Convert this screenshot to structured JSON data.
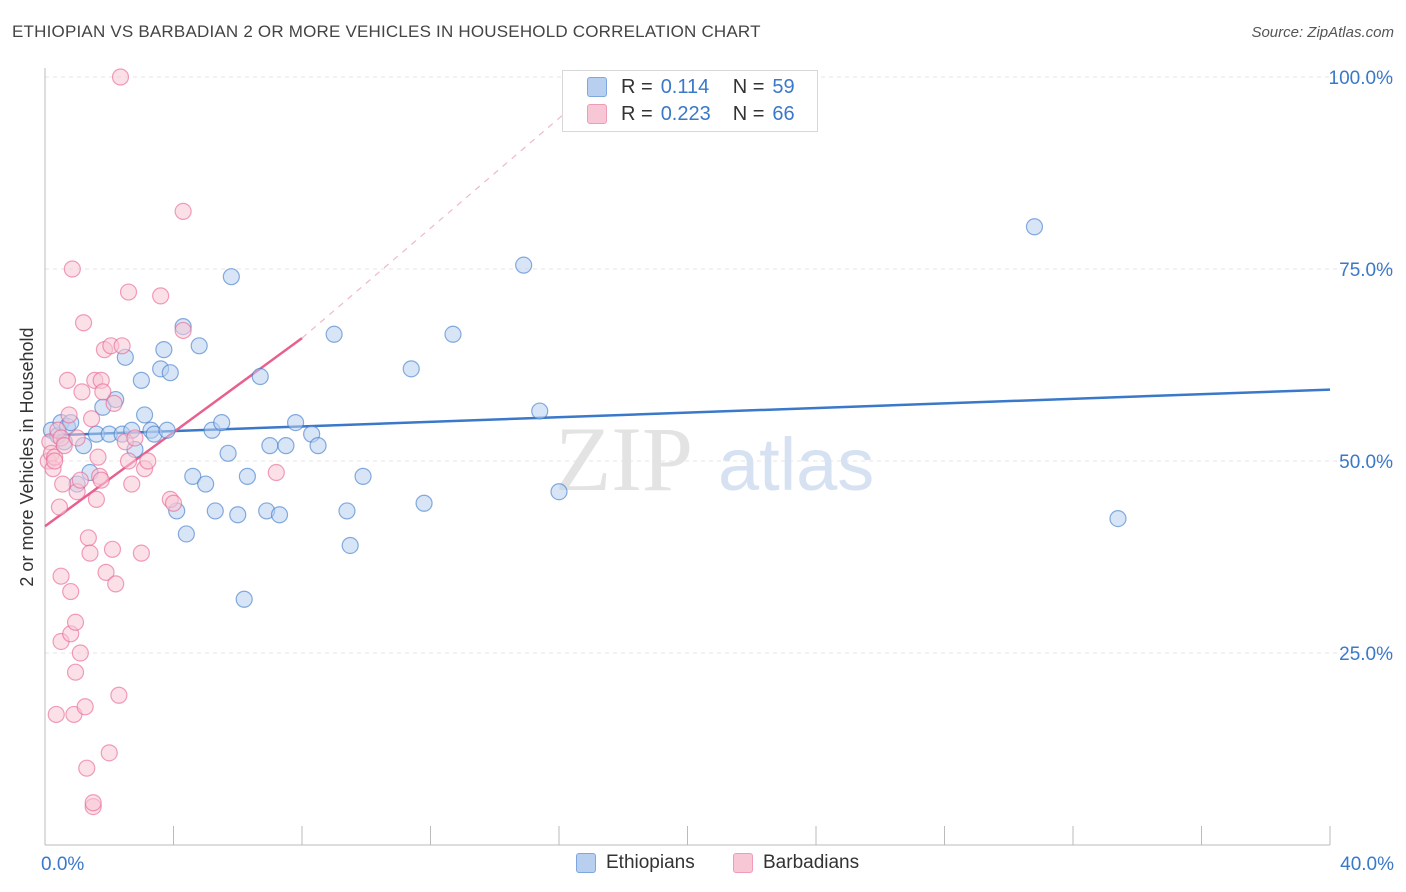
{
  "title": "ETHIOPIAN VS BARBADIAN 2 OR MORE VEHICLES IN HOUSEHOLD CORRELATION CHART",
  "source": "Source: ZipAtlas.com",
  "legend": {
    "rows": [
      {
        "r_label": "R =",
        "r_value": "0.114",
        "n_label": "N =",
        "n_value": "59"
      },
      {
        "r_label": "R =",
        "r_value": "0.223",
        "n_label": "N =",
        "n_value": "66"
      }
    ],
    "bottom": [
      "Ethiopians",
      "Barbadians"
    ]
  },
  "watermark": {
    "zip": "ZIP",
    "atlas": "atlas"
  },
  "colors": {
    "blue": "#3a78c9",
    "blue_fill": "#b8cff0",
    "pink": "#e8608f",
    "pink_fill": "#f8c7d6",
    "grid": "#e6e6e6"
  },
  "chart_data": {
    "type": "scatter",
    "ylabel": "2 or more Vehicles in Household",
    "xlabel": "",
    "xlim": [
      0,
      40
    ],
    "ylim": [
      0,
      100
    ],
    "x_tick_labels": [
      {
        "value": 0,
        "label": "0.0%"
      },
      {
        "value": 40,
        "label": "40.0%"
      }
    ],
    "y_tick_labels": [
      {
        "value": 100,
        "label": "100.0%"
      },
      {
        "value": 75,
        "label": "75.0%"
      },
      {
        "value": 50,
        "label": "50.0%"
      },
      {
        "value": 25,
        "label": "25.0%"
      }
    ],
    "series": [
      {
        "name": "Ethiopians",
        "color": "#3a78c9",
        "fill": "#b8cff0",
        "trend": {
          "x": [
            0,
            40
          ],
          "y": [
            53.3,
            59.3
          ],
          "dashed_extension": false
        },
        "points": [
          [
            0.2,
            54.0
          ],
          [
            0.4,
            53.3
          ],
          [
            0.5,
            55.0
          ],
          [
            0.6,
            52.5
          ],
          [
            0.7,
            54.5
          ],
          [
            0.8,
            55.0
          ],
          [
            1.0,
            47.0
          ],
          [
            1.2,
            52.0
          ],
          [
            1.4,
            48.5
          ],
          [
            1.6,
            53.5
          ],
          [
            1.8,
            57.0
          ],
          [
            2.0,
            53.5
          ],
          [
            2.2,
            58.0
          ],
          [
            2.4,
            53.5
          ],
          [
            2.5,
            63.5
          ],
          [
            2.7,
            54.0
          ],
          [
            2.8,
            51.5
          ],
          [
            3.0,
            60.5
          ],
          [
            3.1,
            56.0
          ],
          [
            3.3,
            54.0
          ],
          [
            3.4,
            53.5
          ],
          [
            3.6,
            62.0
          ],
          [
            3.7,
            64.5
          ],
          [
            3.8,
            54.0
          ],
          [
            3.9,
            61.5
          ],
          [
            4.1,
            43.5
          ],
          [
            4.3,
            67.5
          ],
          [
            4.4,
            40.5
          ],
          [
            4.6,
            48.0
          ],
          [
            4.8,
            65.0
          ],
          [
            5.0,
            47.0
          ],
          [
            5.2,
            54.0
          ],
          [
            5.3,
            43.5
          ],
          [
            5.5,
            55.0
          ],
          [
            5.7,
            51.0
          ],
          [
            5.8,
            74.0
          ],
          [
            6.0,
            43.0
          ],
          [
            6.2,
            32.0
          ],
          [
            6.3,
            48.0
          ],
          [
            6.7,
            61.0
          ],
          [
            6.9,
            43.5
          ],
          [
            7.0,
            52.0
          ],
          [
            7.3,
            43.0
          ],
          [
            7.5,
            52.0
          ],
          [
            7.8,
            55.0
          ],
          [
            8.3,
            53.5
          ],
          [
            8.5,
            52.0
          ],
          [
            9.0,
            66.5
          ],
          [
            9.4,
            43.5
          ],
          [
            9.5,
            39.0
          ],
          [
            9.9,
            48.0
          ],
          [
            11.4,
            62.0
          ],
          [
            11.8,
            44.5
          ],
          [
            12.7,
            66.5
          ],
          [
            14.9,
            75.5
          ],
          [
            15.4,
            56.5
          ],
          [
            16.0,
            46.0
          ],
          [
            30.8,
            80.5
          ],
          [
            33.4,
            42.5
          ]
        ]
      },
      {
        "name": "Barbadians",
        "color": "#e8608f",
        "fill": "#f8c7d6",
        "trend": {
          "x": [
            0,
            8
          ],
          "y": [
            41.5,
            66.0
          ],
          "dashed_extension": true,
          "dash_to": [
            17.5,
            100
          ]
        },
        "points": [
          [
            0.1,
            50.0
          ],
          [
            0.15,
            52.5
          ],
          [
            0.2,
            51.0
          ],
          [
            0.25,
            49.0
          ],
          [
            0.3,
            50.5
          ],
          [
            0.35,
            17.0
          ],
          [
            0.4,
            54.0
          ],
          [
            0.45,
            44.0
          ],
          [
            0.5,
            53.0
          ],
          [
            0.5,
            26.5
          ],
          [
            0.5,
            35.0
          ],
          [
            0.55,
            47.0
          ],
          [
            0.6,
            52.0
          ],
          [
            0.7,
            60.5
          ],
          [
            0.75,
            56.0
          ],
          [
            0.8,
            33.0
          ],
          [
            0.8,
            27.5
          ],
          [
            0.85,
            75.0
          ],
          [
            0.9,
            17.0
          ],
          [
            0.95,
            29.0
          ],
          [
            0.95,
            22.5
          ],
          [
            1.0,
            46.0
          ],
          [
            1.0,
            53.0
          ],
          [
            1.1,
            47.5
          ],
          [
            1.1,
            25.0
          ],
          [
            1.15,
            59.0
          ],
          [
            1.2,
            68.0
          ],
          [
            1.25,
            18.0
          ],
          [
            1.3,
            10.0
          ],
          [
            1.35,
            40.0
          ],
          [
            1.4,
            38.0
          ],
          [
            1.45,
            55.5
          ],
          [
            1.5,
            5.0
          ],
          [
            1.5,
            5.5
          ],
          [
            1.55,
            60.5
          ],
          [
            1.6,
            45.0
          ],
          [
            1.65,
            50.5
          ],
          [
            1.7,
            48.0
          ],
          [
            1.75,
            47.5
          ],
          [
            1.75,
            60.5
          ],
          [
            1.8,
            59.0
          ],
          [
            1.85,
            64.5
          ],
          [
            1.9,
            35.5
          ],
          [
            2.0,
            12.0
          ],
          [
            2.05,
            65.0
          ],
          [
            2.1,
            38.5
          ],
          [
            2.15,
            57.5
          ],
          [
            2.2,
            34.0
          ],
          [
            2.3,
            19.5
          ],
          [
            2.35,
            100.0
          ],
          [
            2.4,
            65.0
          ],
          [
            2.5,
            52.5
          ],
          [
            2.6,
            72.0
          ],
          [
            2.6,
            50.0
          ],
          [
            2.7,
            47.0
          ],
          [
            2.8,
            53.0
          ],
          [
            3.0,
            38.0
          ],
          [
            3.1,
            49.0
          ],
          [
            3.2,
            50.0
          ],
          [
            3.6,
            71.5
          ],
          [
            3.9,
            45.0
          ],
          [
            4.0,
            44.5
          ],
          [
            4.3,
            82.5
          ],
          [
            4.3,
            67.0
          ],
          [
            7.2,
            48.5
          ],
          [
            0.3,
            50.0
          ]
        ]
      }
    ]
  }
}
